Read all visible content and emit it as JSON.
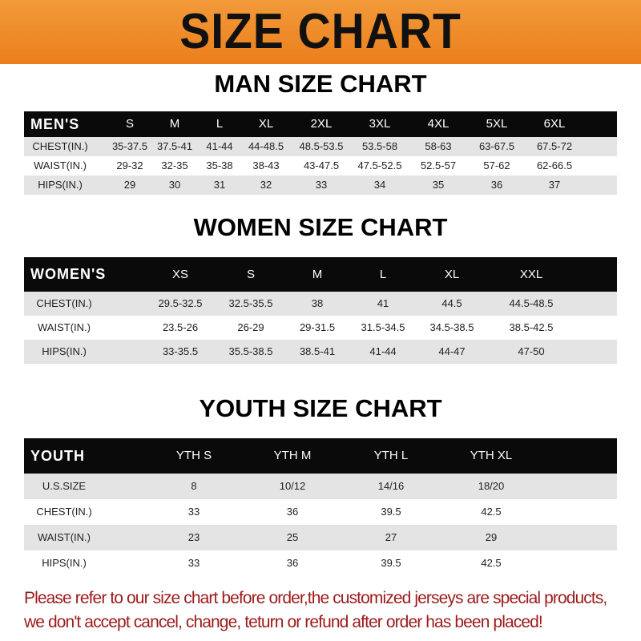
{
  "banner": {
    "title": "SIZE CHART",
    "color": "#ee8a28"
  },
  "men": {
    "title": "MAN SIZE CHART",
    "header": [
      "MEN'S",
      "S",
      "M",
      "L",
      "XL",
      "2XL",
      "3XL",
      "4XL",
      "5XL",
      "6XL"
    ],
    "rows": [
      [
        "CHEST(IN.)",
        "35-37.5",
        "37.5-41",
        "41-44",
        "44-48.5",
        "48.5-53.5",
        "53.5-58",
        "58-63",
        "63-67.5",
        "67.5-72"
      ],
      [
        "WAIST(IN.)",
        "29-32",
        "32-35",
        "35-38",
        "38-43",
        "43-47.5",
        "47.5-52.5",
        "52.5-57",
        "57-62",
        "62-66.5"
      ],
      [
        "HIPS(IN.)",
        "29",
        "30",
        "31",
        "32",
        "33",
        "34",
        "35",
        "36",
        "37"
      ]
    ]
  },
  "women": {
    "title": "WOMEN SIZE CHART",
    "header": [
      "WOMEN'S",
      "XS",
      "S",
      "M",
      "L",
      "XL",
      "XXL"
    ],
    "rows": [
      [
        "CHEST(IN.)",
        "29.5-32.5",
        "32.5-35.5",
        "38",
        "41",
        "44.5",
        "44.5-48.5"
      ],
      [
        "WAIST(IN.)",
        "23.5-26",
        "26-29",
        "29-31.5",
        "31.5-34.5",
        "34.5-38.5",
        "38.5-42.5"
      ],
      [
        "HIPS(IN.)",
        "33-35.5",
        "35.5-38.5",
        "38.5-41",
        "41-44",
        "44-47",
        "47-50"
      ]
    ]
  },
  "youth": {
    "title": "YOUTH SIZE CHART",
    "header": [
      "YOUTH",
      "YTH S",
      "YTH M",
      "YTH L",
      "YTH XL"
    ],
    "rows": [
      [
        "U.S.SIZE",
        "8",
        "10/12",
        "14/16",
        "18/20"
      ],
      [
        "CHEST(IN.)",
        "33",
        "36",
        "39.5",
        "42.5"
      ],
      [
        "WAIST(IN.)",
        "23",
        "25",
        "27",
        "29"
      ],
      [
        "HIPS(IN.)",
        "33",
        "36",
        "39.5",
        "42.5"
      ]
    ]
  },
  "notice": {
    "line1": "Please refer to our size chart before order,the customized jerseys are special products,",
    "line2": "we don't accept cancel, change, teturn or refund after order has been placed!",
    "color": "#9b1b1b"
  }
}
